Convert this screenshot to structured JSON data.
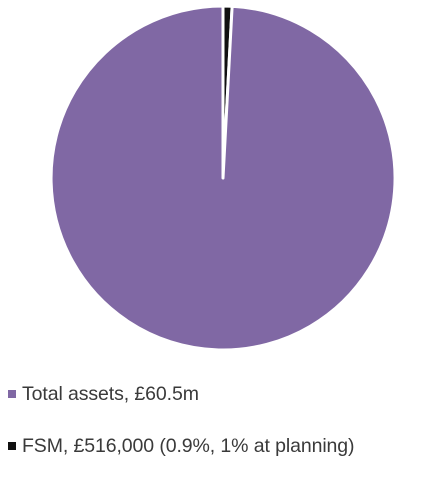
{
  "chart_data": {
    "type": "pie",
    "title": "",
    "legend_position": "bottom",
    "slices": [
      {
        "label": "Total assets, £60.5m",
        "value": 60.5,
        "color": "#8068A4"
      },
      {
        "label": "FSM, £516,000 (0.9%, 1% at planning)",
        "value": 0.516,
        "color": "#111111"
      }
    ],
    "slice_order": "FSM slice first from 12 o'clock, then Total assets, clockwise",
    "slice_border_color": "#ffffff"
  }
}
